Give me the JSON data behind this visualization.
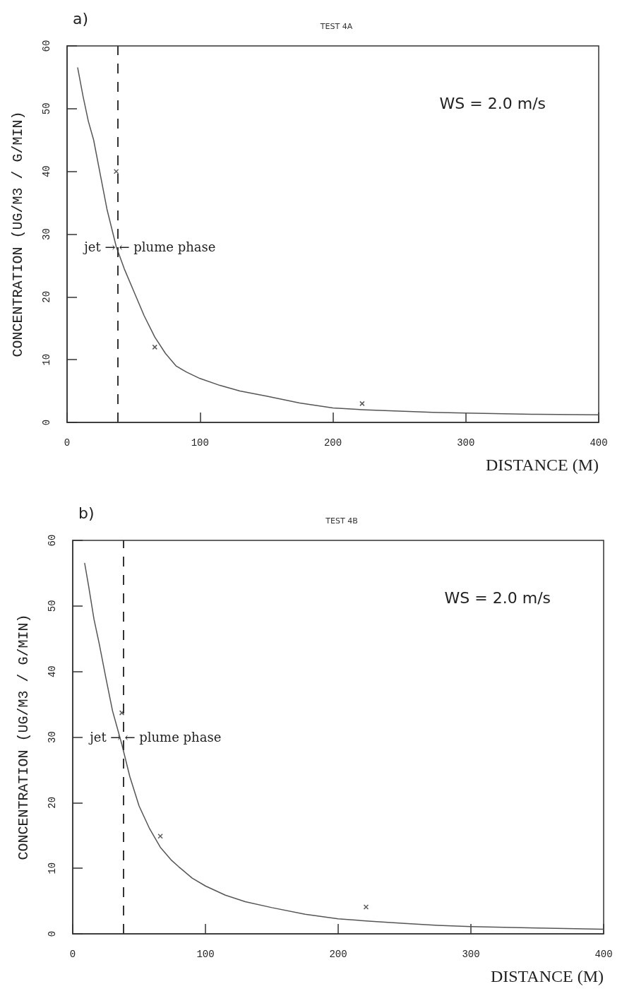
{
  "chart_data": [
    {
      "type": "line",
      "title": "TEST 4A",
      "xlabel": "DISTANCE (M)",
      "ylabel": "CONCENTRATION (UG/M3 / G/MIN)",
      "xlim": [
        0,
        400
      ],
      "xticks": [
        0,
        100,
        200,
        300,
        400
      ],
      "ylim": [
        0,
        60
      ],
      "yticks": [
        0,
        10,
        20,
        30,
        40,
        50,
        60
      ],
      "grid": false,
      "series": [
        {
          "color": "#555555",
          "marker": "none",
          "line_style": "solid",
          "x": [
            8,
            12,
            16,
            20,
            25,
            30,
            37,
            43,
            50,
            58,
            66,
            74,
            82,
            90,
            100,
            115,
            130,
            150,
            175,
            200,
            225,
            250,
            275,
            300,
            350,
            400
          ],
          "values": [
            56.5,
            52,
            48,
            45,
            39.5,
            34,
            28,
            24.5,
            21,
            17,
            13.6,
            11,
            9,
            8,
            7,
            5.9,
            5,
            4.2,
            3.1,
            2.3,
            2,
            1.8,
            1.6,
            1.5,
            1.3,
            1.2
          ]
        },
        {
          "type": "scatter",
          "color": "#333333",
          "marker": "cross",
          "x": [
            37,
            66,
            222
          ],
          "values": [
            40,
            12,
            3
          ]
        }
      ],
      "ref_lines": [
        {
          "axis": "x",
          "value": 38,
          "label": null,
          "line_style": "dashed",
          "color": "#333333"
        }
      ],
      "annotations": [
        "a)",
        "WS = 2.0 m/s",
        "jet →",
        {
          "text": "← plume phase",
          "x": 38,
          "y": 28
        }
      ]
    },
    {
      "type": "line",
      "title": "TEST 4B",
      "xlabel": "DISTANCE (M)",
      "ylabel": "CONCENTRATION (UG/M3 / G/MIN)",
      "xlim": [
        0,
        400
      ],
      "xticks": [
        0,
        100,
        200,
        300,
        400
      ],
      "ylim": [
        0,
        60
      ],
      "yticks": [
        0,
        10,
        20,
        30,
        40,
        50,
        60
      ],
      "grid": false,
      "series": [
        {
          "color": "#555555",
          "marker": "none",
          "line_style": "solid",
          "x": [
            9,
            12,
            16,
            20,
            25,
            30,
            37,
            43,
            50,
            58,
            66,
            74,
            80,
            90,
            100,
            115,
            130,
            150,
            175,
            200,
            225,
            250,
            275,
            300,
            350,
            400
          ],
          "values": [
            56.5,
            53,
            48,
            44.2,
            39,
            34,
            28.9,
            24,
            19.5,
            16,
            13.2,
            11.3,
            10.2,
            8.5,
            7.3,
            5.9,
            4.9,
            4,
            3,
            2.3,
            1.9,
            1.6,
            1.3,
            1.1,
            0.9,
            0.7
          ]
        },
        {
          "type": "scatter",
          "color": "#333333",
          "marker": "cross",
          "x": [
            37,
            66,
            221
          ],
          "values": [
            33.7,
            14.9,
            4.1
          ]
        }
      ],
      "ref_lines": [
        {
          "axis": "x",
          "value": 38,
          "label": null,
          "line_style": "dashed",
          "color": "#333333"
        }
      ],
      "annotations": [
        "b)",
        "WS = 2.0 m/s",
        "jet →",
        {
          "text": "← plume phase",
          "x": 38,
          "y": 30
        }
      ]
    }
  ]
}
